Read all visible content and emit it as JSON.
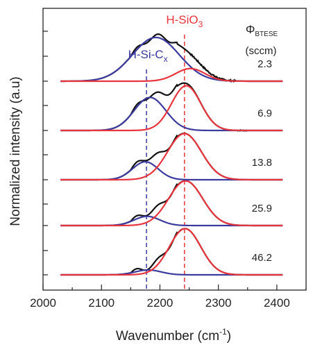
{
  "chart_data": {
    "type": "line",
    "xlabel": "Wavenumber (cm",
    "xlabel_sup": "-1",
    "xlabel_close": ")",
    "ylabel": "Normalized intensity (a.u)",
    "xlim": [
      2000,
      2450
    ],
    "x_ticks": [
      2000,
      2100,
      2200,
      2300,
      2400
    ],
    "y_ticks_visible_labels": false,
    "legend_title": {
      "symbol": "Φ",
      "subscript": "BTESE",
      "unit": "(sccm)"
    },
    "annotations": {
      "si_o": {
        "main": "H-SiO",
        "sub": "3",
        "color": "#e8343c",
        "x": 2242
      },
      "si_c": {
        "main": "H-Si-C",
        "sub": "x",
        "color": "#3b3a9e",
        "x": 2177
      }
    },
    "colors": {
      "data": "#111111",
      "si_o_fit": "#e8343c",
      "si_c_fit": "#3b3a9e"
    },
    "series": [
      {
        "flow_label": "46.2",
        "baseline": 4.0,
        "si_o": {
          "center": 2243,
          "height": 0.95,
          "width": 27
        },
        "si_c": {
          "center": 2180,
          "height": 0.1,
          "width": 22
        }
      },
      {
        "flow_label": "25.9",
        "baseline": 3.0,
        "si_o": {
          "center": 2244,
          "height": 0.92,
          "width": 29
        },
        "si_c": {
          "center": 2178,
          "height": 0.19,
          "width": 22
        }
      },
      {
        "flow_label": "13.8",
        "baseline": 2.0,
        "si_o": {
          "center": 2242,
          "height": 0.95,
          "width": 29
        },
        "si_c": {
          "center": 2175,
          "height": 0.37,
          "width": 22
        }
      },
      {
        "flow_label": "6.9",
        "baseline": 1.0,
        "si_o": {
          "center": 2245,
          "height": 0.92,
          "width": 25
        },
        "si_c": {
          "center": 2183,
          "height": 0.68,
          "width": 27
        }
      },
      {
        "flow_label": "2.3",
        "baseline": 0.0,
        "si_o": {
          "center": 2252,
          "height": 0.26,
          "width": 25
        },
        "si_c": {
          "center": 2193,
          "height": 0.9,
          "width": 40
        }
      }
    ]
  }
}
